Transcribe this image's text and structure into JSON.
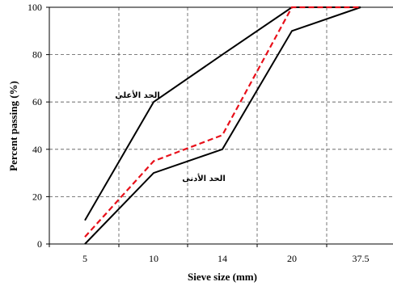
{
  "chart_data": {
    "type": "line",
    "title": "",
    "xlabel": "Sieve size (mm)",
    "ylabel": "Percent passing (%)",
    "categories": [
      "5",
      "10",
      "14",
      "20",
      "37.5"
    ],
    "ylim": [
      0,
      100
    ],
    "yticks": [
      0,
      20,
      40,
      60,
      80,
      100
    ],
    "grid": true,
    "grid_style": "dashed",
    "series": [
      {
        "style": "solid",
        "color": "#000000",
        "points": [
          [
            5,
            10
          ],
          [
            10,
            60
          ],
          [
            14,
            80
          ],
          [
            20,
            100
          ],
          [
            37.5,
            100
          ]
        ]
      },
      {
        "style": "solid",
        "color": "#000000",
        "points": [
          [
            5,
            0
          ],
          [
            10,
            30
          ],
          [
            14,
            40
          ],
          [
            20,
            90
          ],
          [
            37.5,
            100
          ]
        ]
      },
      {
        "style": "dashed",
        "color": "#e8101a",
        "points": [
          [
            5,
            3
          ],
          [
            10,
            35
          ],
          [
            14,
            46
          ],
          [
            20,
            100
          ],
          [
            37.5,
            100
          ]
        ]
      }
    ],
    "annotations": [
      {
        "text": "الحد الأعلى"
      },
      {
        "text": "الحد الأدنى"
      }
    ]
  }
}
